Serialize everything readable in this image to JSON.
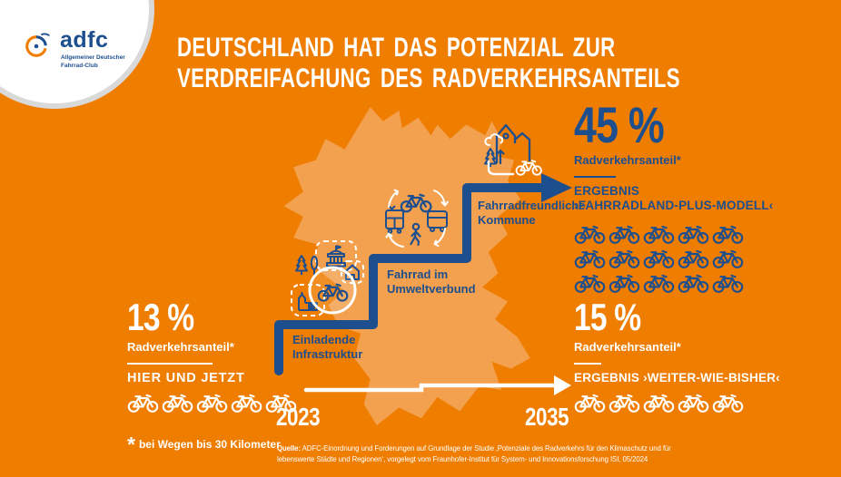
{
  "colors": {
    "background": "#EF7D00",
    "map": "#F3A14E",
    "accent_blue": "#1D4E8E",
    "white": "#FFFFFF"
  },
  "logo": {
    "brand": "adfc",
    "subline1": "Allgemeiner Deutscher",
    "subline2": "Fahrrad-Club"
  },
  "title": {
    "line1": "DEUTSCHLAND HAT DAS POTENZIAL ZUR",
    "line2": "VERDREIFACHUNG DES RADVERKEHRSANTEILS"
  },
  "current": {
    "percent": "13 %",
    "label": "Radverkehrsanteil*",
    "heading": "HIER UND JETZT",
    "bike_count": 5
  },
  "scenario_plus": {
    "percent": "45 %",
    "label": "Radverkehrsanteil*",
    "result_line1": "ERGEBNIS",
    "result_line2": "›FAHRRADLAND-PLUS-MODELL‹",
    "bike_count": 15
  },
  "scenario_bau": {
    "percent": "15 %",
    "label": "Radverkehrsanteil*",
    "result": "ERGEBNIS ›WEITER-WIE-BISHER‹",
    "bike_count": 5
  },
  "steps": {
    "step1_line1": "Einladende",
    "step1_line2": "Infrastruktur",
    "step2_line1": "Fahrrad im",
    "step2_line2": "Umweltverbund",
    "step3_line1": "Fahrradfreundliche",
    "step3_line2": "Kommune"
  },
  "timeline": {
    "start_year": "2023",
    "end_year": "2035"
  },
  "footnote": {
    "marker": "*",
    "text": "bei Wegen bis 30 Kilometer"
  },
  "source": {
    "label": "Quelle:",
    "line1": "ADFC-Einordnung und Forderungen auf Grundlage der Studie ‚Potenziale des Radverkehrs für den Klimaschutz und für",
    "line2": "lebenswerte Städte und Regionen‘, vorgelegt vom Fraunhofer-Institut für System- und Innovationsforschung ISI, 05/2024"
  }
}
